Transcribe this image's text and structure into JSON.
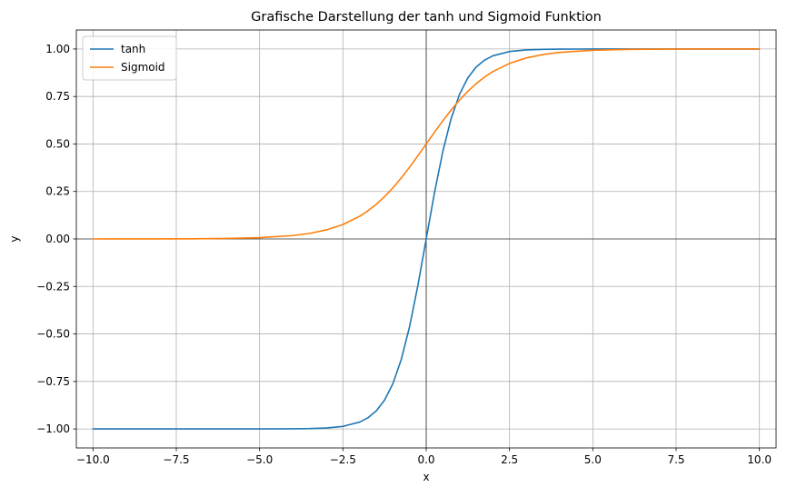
{
  "chart_data": {
    "type": "line",
    "title": "Grafische Darstellung der tanh und Sigmoid Funktion",
    "xlabel": "x",
    "ylabel": "y",
    "xlim": [
      -10.5,
      10.5
    ],
    "ylim": [
      -1.1,
      1.1
    ],
    "xticks": [
      -10,
      -7.5,
      -5,
      -2.5,
      0,
      2.5,
      5,
      7.5,
      10
    ],
    "xtick_labels": [
      "−10.0",
      "−7.5",
      "−5.0",
      "−2.5",
      "0.0",
      "2.5",
      "5.0",
      "7.5",
      "10.0"
    ],
    "yticks": [
      -1,
      -0.75,
      -0.5,
      -0.25,
      0,
      0.25,
      0.5,
      0.75,
      1
    ],
    "ytick_labels": [
      "−1.00",
      "−0.75",
      "−0.50",
      "−0.25",
      "0.00",
      "0.25",
      "0.50",
      "0.75",
      "1.00"
    ],
    "grid": true,
    "reference_lines": [
      "x=0",
      "y=0"
    ],
    "legend_position": "top-left",
    "series": [
      {
        "name": "tanh",
        "color": "#1f77b4",
        "x": [
          -10,
          -9,
          -8,
          -7,
          -6,
          -5,
          -4,
          -3.5,
          -3,
          -2.5,
          -2,
          -1.75,
          -1.5,
          -1.25,
          -1,
          -0.75,
          -0.5,
          -0.25,
          0,
          0.25,
          0.5,
          0.75,
          1,
          1.25,
          1.5,
          1.75,
          2,
          2.5,
          3,
          3.5,
          4,
          5,
          6,
          7,
          8,
          9,
          10
        ],
        "y": [
          -1.0,
          -1.0,
          -1.0,
          -1.0,
          -1.0,
          -0.9999,
          -0.9993,
          -0.9982,
          -0.9951,
          -0.9866,
          -0.964,
          -0.9414,
          -0.9051,
          -0.8483,
          -0.7616,
          -0.6351,
          -0.4621,
          -0.2449,
          0.0,
          0.2449,
          0.4621,
          0.6351,
          0.7616,
          0.8483,
          0.9051,
          0.9414,
          0.964,
          0.9866,
          0.9951,
          0.9982,
          0.9993,
          0.9999,
          1.0,
          1.0,
          1.0,
          1.0,
          1.0
        ]
      },
      {
        "name": "Sigmoid",
        "color": "#ff7f0e",
        "x": [
          -10,
          -9,
          -8,
          -7,
          -6,
          -5,
          -4,
          -3.5,
          -3,
          -2.5,
          -2,
          -1.75,
          -1.5,
          -1.25,
          -1,
          -0.75,
          -0.5,
          -0.25,
          0,
          0.25,
          0.5,
          0.75,
          1,
          1.25,
          1.5,
          1.75,
          2,
          2.5,
          3,
          3.5,
          4,
          5,
          6,
          7,
          8,
          9,
          10
        ],
        "y": [
          0.0,
          0.0001,
          0.0003,
          0.0009,
          0.0025,
          0.0067,
          0.018,
          0.0293,
          0.0474,
          0.0759,
          0.1192,
          0.148,
          0.1824,
          0.2227,
          0.2689,
          0.3208,
          0.3775,
          0.4378,
          0.5,
          0.5622,
          0.6225,
          0.6792,
          0.7311,
          0.7773,
          0.8176,
          0.852,
          0.8808,
          0.9241,
          0.9526,
          0.9707,
          0.982,
          0.9933,
          0.9975,
          0.9991,
          0.9997,
          0.9999,
          1.0
        ]
      }
    ]
  }
}
